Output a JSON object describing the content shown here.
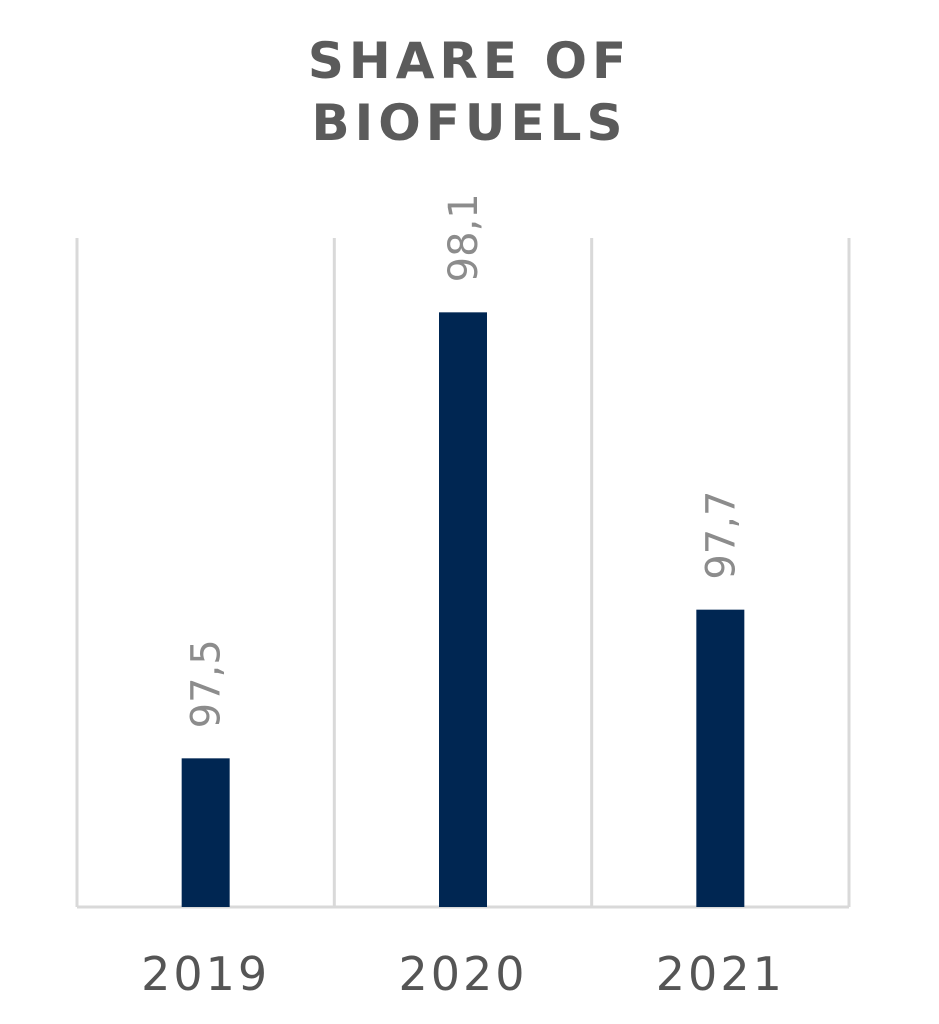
{
  "chart_data": {
    "type": "bar",
    "title_lines": [
      "SHARE OF",
      "BIOFUELS"
    ],
    "categories": [
      "2019",
      "2020",
      "2021"
    ],
    "values": [
      97.5,
      98.1,
      97.7
    ],
    "value_labels": [
      "97,5",
      "98,1",
      "97,7"
    ],
    "ylim": [
      97.3,
      98.2
    ],
    "grid": "vertical",
    "colors": {
      "bar": "#002652",
      "grid": "#d9d9d9",
      "title": "#5b5b5b",
      "tick_label": "#555555",
      "data_label": "#8c8c8c"
    }
  }
}
